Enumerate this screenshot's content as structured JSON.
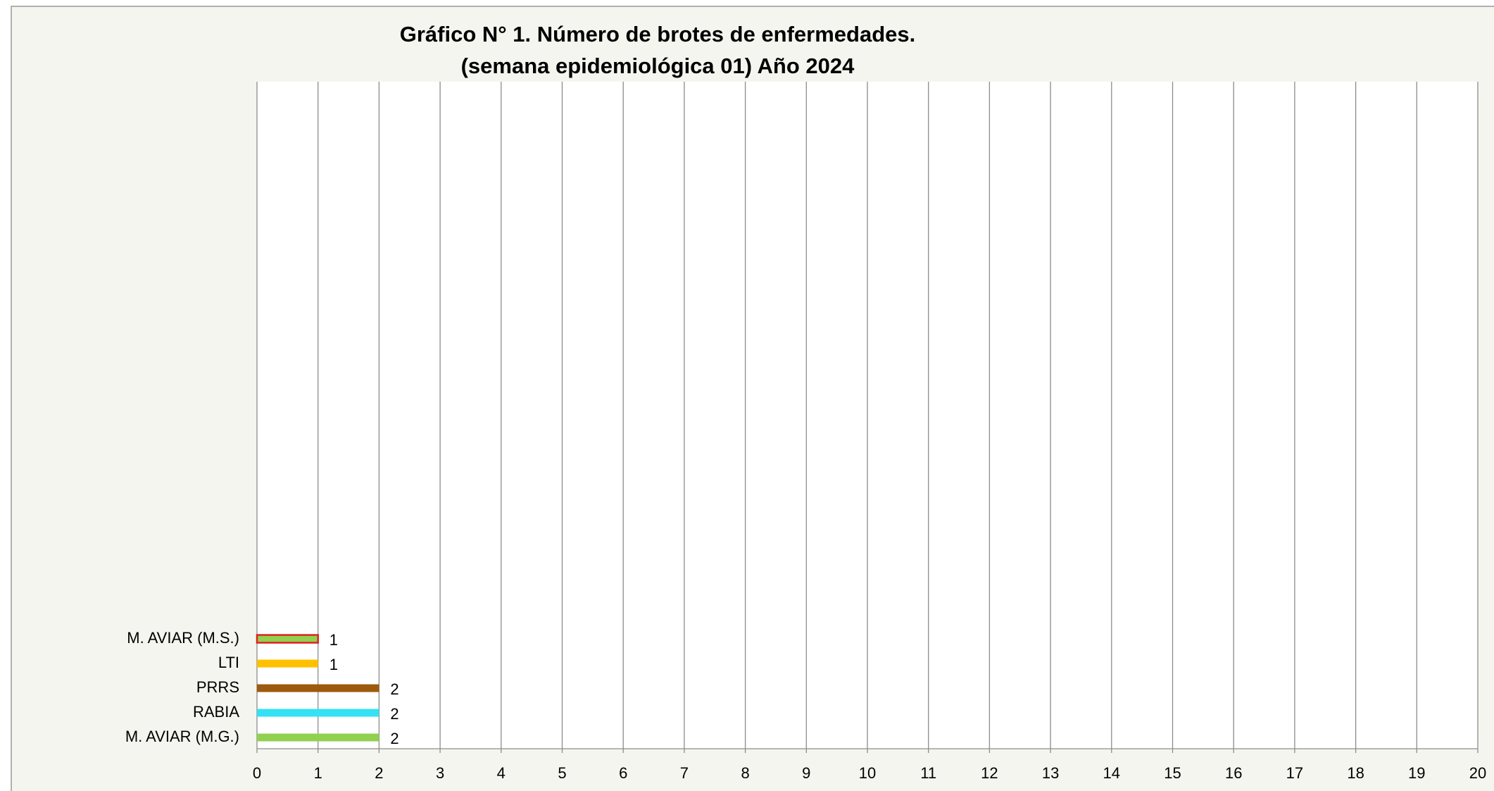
{
  "chart_data": {
    "type": "bar",
    "orientation": "horizontal",
    "title": [
      "Gráfico N° 1. Número de brotes de enfermedades.",
      "(semana epidemiológica 01) Año 2024"
    ],
    "categories": [
      "M. AVIAR (M.G.)",
      "RABIA",
      "PRRS",
      "LTI",
      "M. AVIAR (M.S.)"
    ],
    "values": [
      2,
      2,
      2,
      1,
      1
    ],
    "colors": [
      "#92d050",
      "#33e3f3",
      "#9c5a0e",
      "#ffc000",
      "#92d050"
    ],
    "edge_colors": [
      null,
      null,
      null,
      null,
      "#e02020"
    ],
    "xlim": [
      0,
      20
    ],
    "xticks": [
      0,
      1,
      2,
      3,
      4,
      5,
      6,
      7,
      8,
      9,
      10,
      11,
      12,
      13,
      14,
      15,
      16,
      17,
      18,
      19,
      20
    ],
    "grid": true
  }
}
